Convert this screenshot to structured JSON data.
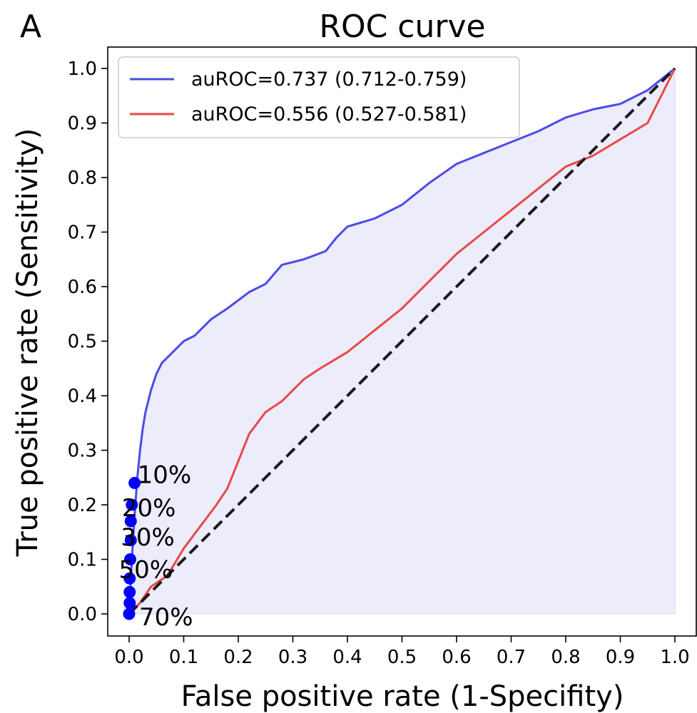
{
  "panel_letter": "A",
  "chart_data": {
    "type": "line",
    "title": "ROC curve",
    "xlabel": "False positive rate (1-Specifity)",
    "ylabel": "True positive rate (Sensitivity)",
    "xlim": [
      0.0,
      1.0
    ],
    "ylim": [
      0.0,
      1.0
    ],
    "xticks": [
      "0.0",
      "0.1",
      "0.2",
      "0.3",
      "0.4",
      "0.5",
      "0.6",
      "0.7",
      "0.8",
      "0.9",
      "1.0"
    ],
    "yticks": [
      "0.0",
      "0.1",
      "0.2",
      "0.3",
      "0.4",
      "0.5",
      "0.6",
      "0.7",
      "0.8",
      "0.9",
      "1.0"
    ],
    "grid": false,
    "legend_position": "top-left",
    "colors": {
      "blue": "#4b4be6",
      "red": "#e84848",
      "diagonal": "#1a1a1a",
      "fill": "#ececfb",
      "points": "#0000ff"
    },
    "series": [
      {
        "name": "auROC=0.737 (0.712-0.759)",
        "color": "#4b4be6",
        "points": [
          [
            0,
            0
          ],
          [
            0.005,
            0.1
          ],
          [
            0.01,
            0.18
          ],
          [
            0.015,
            0.25
          ],
          [
            0.02,
            0.3
          ],
          [
            0.025,
            0.34
          ],
          [
            0.03,
            0.37
          ],
          [
            0.04,
            0.41
          ],
          [
            0.05,
            0.44
          ],
          [
            0.06,
            0.46
          ],
          [
            0.08,
            0.48
          ],
          [
            0.1,
            0.5
          ],
          [
            0.12,
            0.51
          ],
          [
            0.15,
            0.54
          ],
          [
            0.18,
            0.56
          ],
          [
            0.2,
            0.575
          ],
          [
            0.22,
            0.59
          ],
          [
            0.25,
            0.605
          ],
          [
            0.28,
            0.64
          ],
          [
            0.32,
            0.65
          ],
          [
            0.36,
            0.665
          ],
          [
            0.38,
            0.69
          ],
          [
            0.4,
            0.71
          ],
          [
            0.45,
            0.725
          ],
          [
            0.5,
            0.75
          ],
          [
            0.55,
            0.79
          ],
          [
            0.6,
            0.825
          ],
          [
            0.65,
            0.845
          ],
          [
            0.7,
            0.865
          ],
          [
            0.75,
            0.885
          ],
          [
            0.8,
            0.91
          ],
          [
            0.85,
            0.925
          ],
          [
            0.9,
            0.935
          ],
          [
            0.95,
            0.96
          ],
          [
            1.0,
            1.0
          ]
        ]
      },
      {
        "name": "auROC=0.556 (0.527-0.581)",
        "color": "#e84848",
        "points": [
          [
            0,
            0
          ],
          [
            0.02,
            0.02
          ],
          [
            0.04,
            0.05
          ],
          [
            0.07,
            0.07
          ],
          [
            0.1,
            0.12
          ],
          [
            0.13,
            0.16
          ],
          [
            0.16,
            0.2
          ],
          [
            0.18,
            0.23
          ],
          [
            0.2,
            0.28
          ],
          [
            0.22,
            0.33
          ],
          [
            0.25,
            0.37
          ],
          [
            0.28,
            0.39
          ],
          [
            0.3,
            0.41
          ],
          [
            0.32,
            0.43
          ],
          [
            0.35,
            0.45
          ],
          [
            0.4,
            0.48
          ],
          [
            0.45,
            0.52
          ],
          [
            0.5,
            0.56
          ],
          [
            0.55,
            0.61
          ],
          [
            0.6,
            0.66
          ],
          [
            0.65,
            0.7
          ],
          [
            0.7,
            0.74
          ],
          [
            0.75,
            0.78
          ],
          [
            0.8,
            0.82
          ],
          [
            0.85,
            0.84
          ],
          [
            0.9,
            0.87
          ],
          [
            0.95,
            0.9
          ],
          [
            1.0,
            1.0
          ]
        ]
      }
    ],
    "diagonal": [
      [
        0,
        0
      ],
      [
        1,
        1
      ]
    ],
    "threshold_points": [
      {
        "x": 0.01,
        "y": 0.24,
        "label": "10%"
      },
      {
        "x": 0.005,
        "y": 0.2,
        "label": "20%"
      },
      {
        "x": 0.003,
        "y": 0.17,
        "label": "30%"
      },
      {
        "x": 0.003,
        "y": 0.135,
        "label": ""
      },
      {
        "x": 0.002,
        "y": 0.1,
        "label": "50%"
      },
      {
        "x": 0.001,
        "y": 0.065,
        "label": ""
      },
      {
        "x": 0.001,
        "y": 0.04,
        "label": ""
      },
      {
        "x": 0.001,
        "y": 0.02,
        "label": ""
      },
      {
        "x": 0.0,
        "y": 0.0,
        "label": "70%"
      }
    ]
  }
}
